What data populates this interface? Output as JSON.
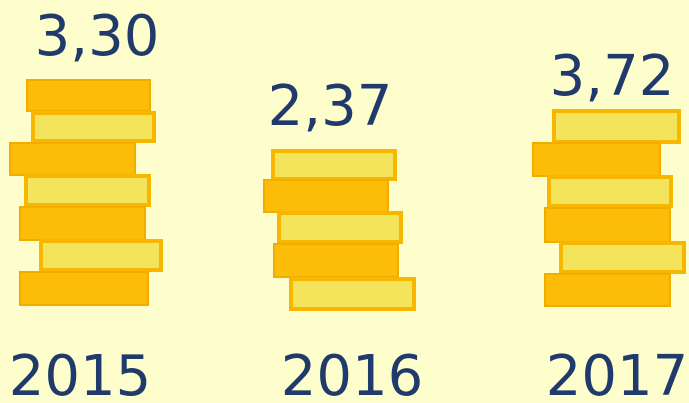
{
  "items": [
    {
      "value": "3,30",
      "year": "2015"
    },
    {
      "value": "2,37",
      "year": "2016"
    },
    {
      "value": "3,72",
      "year": "2017"
    }
  ]
}
